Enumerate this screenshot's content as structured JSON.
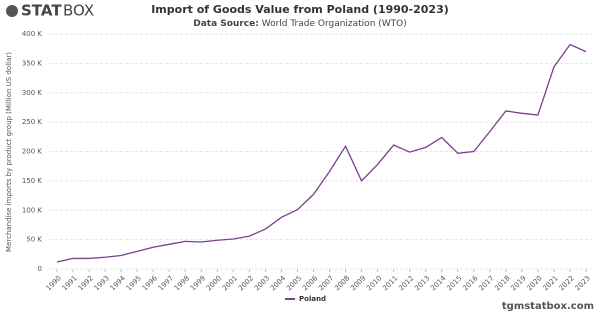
{
  "logo": {
    "bold": "STAT",
    "light": "BOX"
  },
  "watermark": "tgmstatbox.com",
  "chart_data": {
    "type": "line",
    "title": "Import of Goods Value from Poland (1990-2023)",
    "subtitle_label": "Data Source:",
    "subtitle": "World Trade Organization (WTO)",
    "y_label": "Merchandise imports by product group (Million US dollar)",
    "x": [
      1990,
      1991,
      1992,
      1993,
      1994,
      1995,
      1996,
      1997,
      1998,
      1999,
      2000,
      2001,
      2002,
      2003,
      2004,
      2005,
      2006,
      2007,
      2008,
      2009,
      2010,
      2011,
      2012,
      2013,
      2014,
      2015,
      2016,
      2017,
      2018,
      2019,
      2020,
      2021,
      2022,
      2023
    ],
    "series": [
      {
        "name": "Poland",
        "color": "#7b3f8c",
        "values": [
          12000,
          18000,
          18000,
          20000,
          23000,
          30000,
          37000,
          42000,
          47000,
          46000,
          49000,
          51000,
          56000,
          68000,
          88000,
          101000,
          127000,
          166000,
          209000,
          150000,
          178000,
          211000,
          199000,
          207000,
          224000,
          197000,
          200000,
          234000,
          269000,
          265000,
          262000,
          344000,
          382000,
          370000
        ]
      }
    ],
    "ylim": [
      0,
      400000
    ],
    "yticks": [
      0,
      {
        "value": 50000,
        "label": "50 K"
      },
      {
        "value": 100000,
        "label": "100 K"
      },
      {
        "value": 150000,
        "label": "150 K"
      },
      {
        "value": 200000,
        "label": "200 K"
      },
      {
        "value": 250000,
        "label": "250 K"
      },
      {
        "value": 300000,
        "label": "300 K"
      },
      {
        "value": 350000,
        "label": "350 K"
      },
      {
        "value": 400000,
        "label": "400 K"
      }
    ],
    "grid": true,
    "legend": "bottom"
  }
}
